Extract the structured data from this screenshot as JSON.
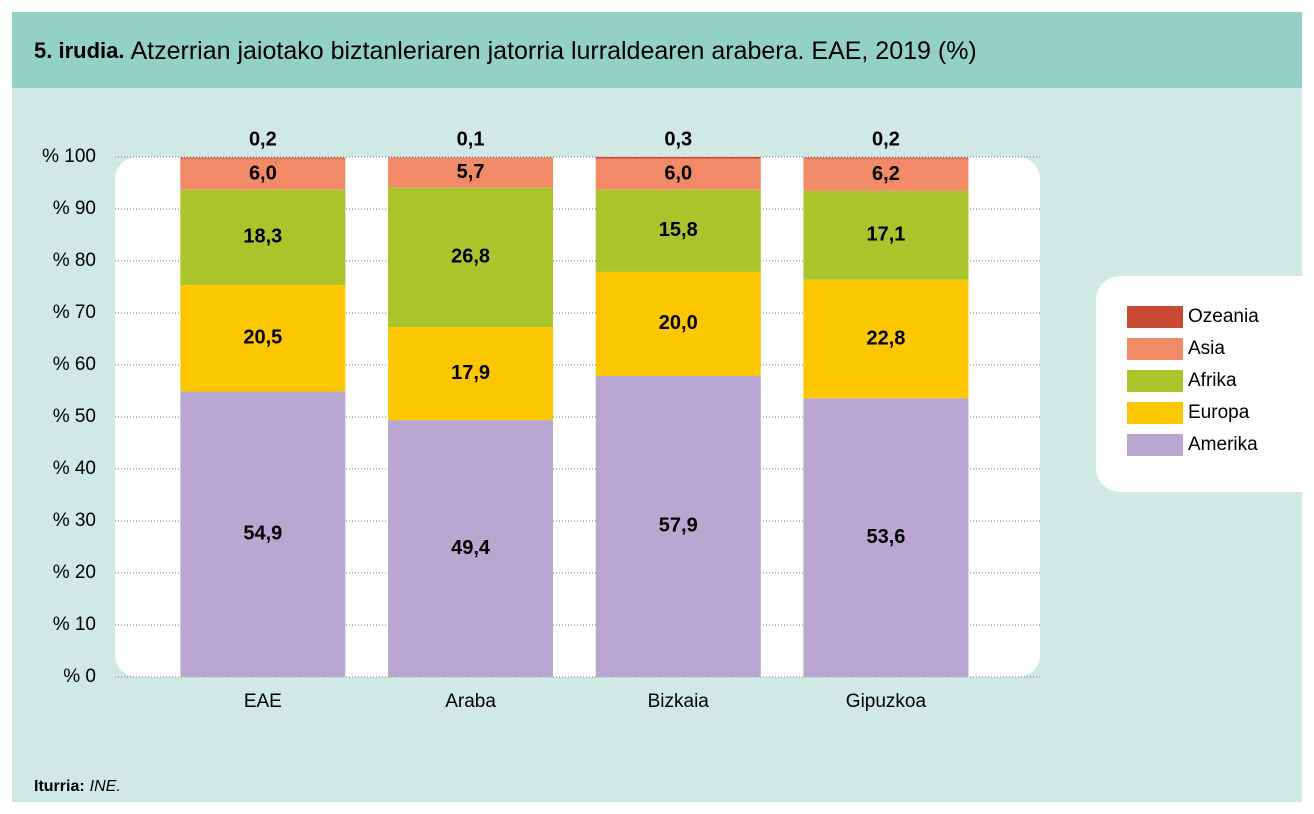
{
  "chart_data": {
    "type": "stacked_bar",
    "title_label": "5. irudia.",
    "title": "Atzerrian jaiotako biztanleriaren jatorria lurraldearen arabera. EAE, 2019 (%)",
    "categories": [
      "EAE",
      "Araba",
      "Bizkaia",
      "Gipuzkoa"
    ],
    "series": [
      {
        "name": "Amerika",
        "color": "#b9a7d1",
        "values": [
          54.9,
          49.4,
          57.9,
          53.6
        ],
        "value_labels": [
          "54,9",
          "49,4",
          "57,9",
          "53,6"
        ]
      },
      {
        "name": "Europa",
        "color": "#fdc700",
        "values": [
          20.5,
          17.9,
          20.0,
          22.8
        ],
        "value_labels": [
          "20,5",
          "17,9",
          "20,0",
          "22,8"
        ]
      },
      {
        "name": "Afrika",
        "color": "#a9c52b",
        "values": [
          18.3,
          26.8,
          15.8,
          17.1
        ],
        "value_labels": [
          "18,3",
          "26,8",
          "15,8",
          "17,1"
        ]
      },
      {
        "name": "Asia",
        "color": "#f28a68",
        "values": [
          6.0,
          5.7,
          6.0,
          6.2
        ],
        "value_labels": [
          "6,0",
          "5,7",
          "6,0",
          "6,2"
        ]
      },
      {
        "name": "Ozeania",
        "color": "#c84a33",
        "values": [
          0.2,
          0.1,
          0.3,
          0.2
        ],
        "value_labels": [
          "0,2",
          "0,1",
          "0,3",
          "0,2"
        ]
      }
    ],
    "ylim": [
      0,
      100
    ],
    "yticks": [
      {
        "value": 0,
        "label": "% 0"
      },
      {
        "value": 10,
        "label": "% 10"
      },
      {
        "value": 20,
        "label": "% 20"
      },
      {
        "value": 30,
        "label": "% 30"
      },
      {
        "value": 40,
        "label": "% 40"
      },
      {
        "value": 50,
        "label": "% 50"
      },
      {
        "value": 60,
        "label": "% 60"
      },
      {
        "value": 70,
        "label": "% 70"
      },
      {
        "value": 80,
        "label": "% 80"
      },
      {
        "value": 90,
        "label": "% 90"
      },
      {
        "value": 100,
        "label": "% 100"
      }
    ],
    "grid": true,
    "legend": "right",
    "source_label": "Iturria:",
    "source": "INE."
  }
}
